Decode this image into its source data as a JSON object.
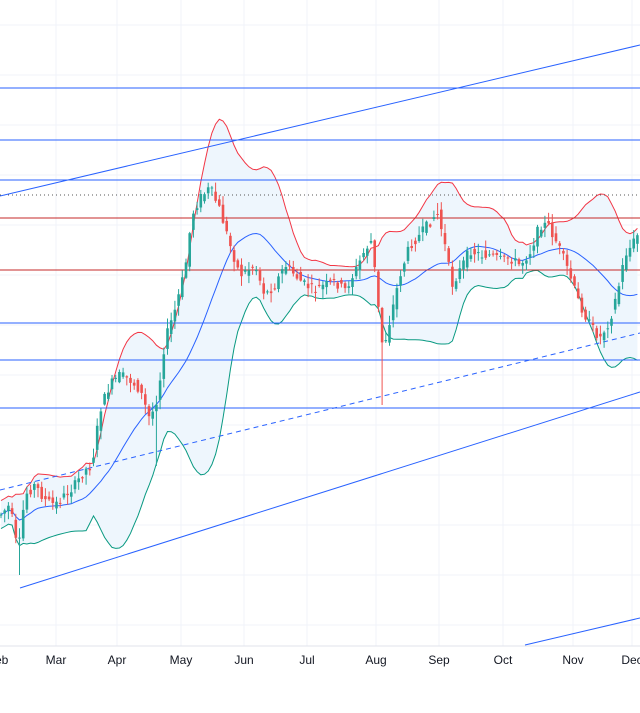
{
  "chart_data": {
    "type": "candlestick",
    "x_ticks": [
      "Feb",
      "Mar",
      "Apr",
      "May",
      "Jun",
      "Jul",
      "Aug",
      "Sep",
      "Oct",
      "Nov",
      "Dec"
    ],
    "colors": {
      "up": "#26a69a",
      "down": "#ef5350",
      "bb_upper": "#f23645",
      "bb_basis": "#2962ff",
      "bb_lower": "#089981",
      "bb_fill": "#eef6fd",
      "level_line": "#2962ff",
      "resistance_line": "#c62828",
      "trendline": "#2962ff",
      "grid": "#f0f3fa"
    },
    "indicators": [
      "Bollinger Bands (upper, basis, lower)"
    ],
    "horizontal_levels": {
      "blue_solid": 7,
      "red_solid": 2,
      "dotted": 1
    },
    "trendlines": [
      {
        "style": "solid",
        "role": "upper channel"
      },
      {
        "style": "dashed",
        "role": "mid channel"
      },
      {
        "style": "solid",
        "role": "lower channel"
      },
      {
        "style": "solid",
        "role": "lower-right segment"
      }
    ],
    "grid": true,
    "legend": "none"
  }
}
